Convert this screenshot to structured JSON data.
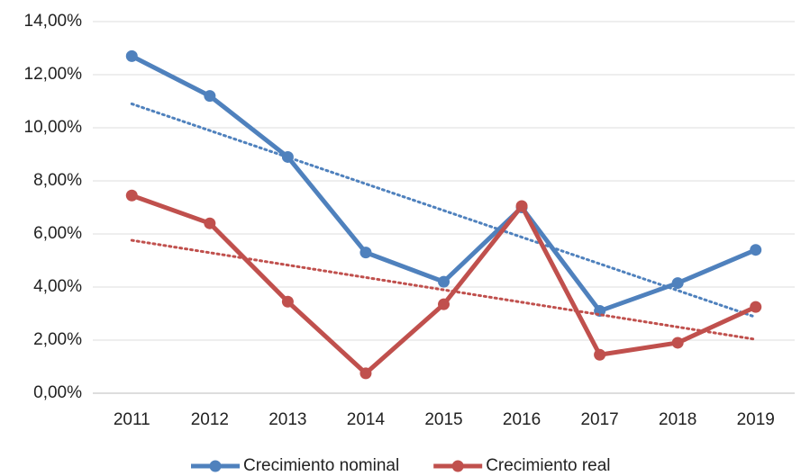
{
  "chart_data": {
    "type": "line",
    "categories": [
      "2011",
      "2012",
      "2013",
      "2014",
      "2015",
      "2016",
      "2017",
      "2018",
      "2019"
    ],
    "series": [
      {
        "name": "Crecimiento nominal",
        "color": "#4f81bd",
        "values": [
          12.7,
          11.2,
          8.9,
          5.3,
          4.2,
          7.0,
          3.1,
          4.15,
          5.4
        ]
      },
      {
        "name": "Crecimiento real",
        "color": "#c0504d",
        "values": [
          7.45,
          6.4,
          3.45,
          0.75,
          3.35,
          7.05,
          1.45,
          1.9,
          3.25
        ]
      }
    ],
    "trendline": true,
    "ylim": [
      0,
      14
    ],
    "yticks": [
      {
        "value": 0,
        "label": "0,00%"
      },
      {
        "value": 2,
        "label": "2,00%"
      },
      {
        "value": 4,
        "label": "4,00%"
      },
      {
        "value": 6,
        "label": "6,00%"
      },
      {
        "value": 8,
        "label": "8,00%"
      },
      {
        "value": 10,
        "label": "10,00%"
      },
      {
        "value": 12,
        "label": "12,00%"
      },
      {
        "value": 14,
        "label": "14,00%"
      }
    ],
    "grid": true,
    "legend": "bottom"
  }
}
